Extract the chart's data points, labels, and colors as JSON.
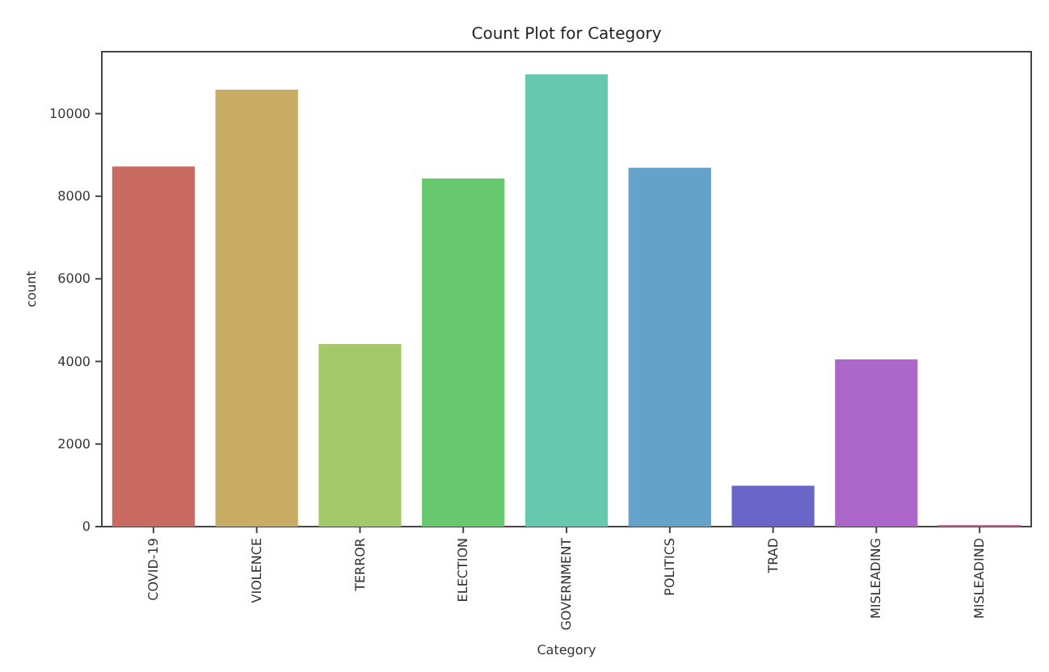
{
  "chart_data": {
    "type": "bar",
    "title": "Count Plot for Category",
    "xlabel": "Category",
    "ylabel": "count",
    "categories": [
      "COVID-19",
      "VIOLENCE",
      "TERROR",
      "ELECTION",
      "GOVERNMENT",
      "POLITICS",
      "TRAD",
      "MISLEADING",
      "MISLEADIND"
    ],
    "values": [
      8720,
      10580,
      4420,
      8430,
      10950,
      8690,
      990,
      4050,
      40
    ],
    "colors": [
      "#c96b62",
      "#c9ac63",
      "#a3c96a",
      "#66c96d",
      "#66c9ad",
      "#64a2c9",
      "#6a66c9",
      "#ad66c9",
      "#c96692"
    ],
    "ylim": [
      0,
      11500
    ],
    "yticks": [
      0,
      2000,
      4000,
      6000,
      8000,
      10000
    ]
  }
}
